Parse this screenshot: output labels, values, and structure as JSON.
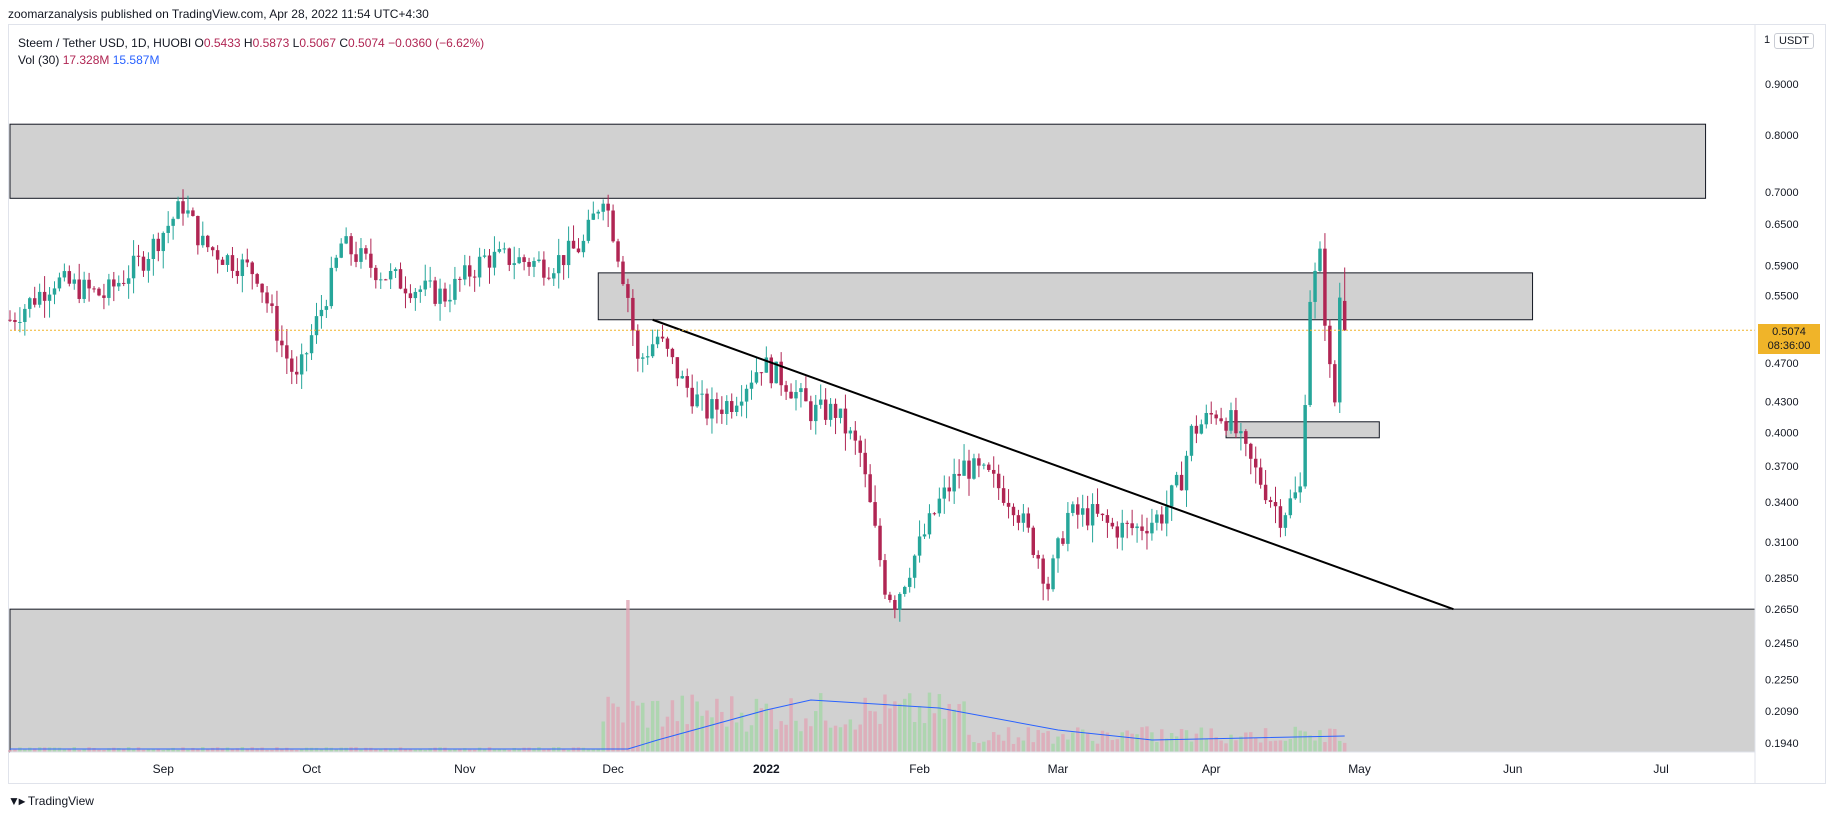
{
  "header": {
    "published": "zoomarzanalysis published on TradingView.com, Apr 28, 2022 11:54 UTC+4:30"
  },
  "legend": {
    "symbol": "Steem / Tether USD, 1D, HUOBI",
    "o_label": "O",
    "o": "0.5433",
    "h_label": "H",
    "h": "0.5873",
    "l_label": "L",
    "l": "0.5067",
    "c_label": "C",
    "c": "0.5074",
    "change": "−0.0360 (−6.62%)",
    "vol_label": "Vol (30)",
    "vol": "17.328M",
    "vol_ma": "15.587M"
  },
  "axis": {
    "unit": "USDT",
    "top_tick": "1",
    "current_price": "0.5074",
    "countdown": "08:36:00",
    "price_ticks": [
      "0.9000",
      "0.8000",
      "0.7000",
      "0.6500",
      "0.5900",
      "0.5500",
      "0.4700",
      "0.4300",
      "0.4000",
      "0.3700",
      "0.3400",
      "0.3100",
      "0.2850",
      "0.2650",
      "0.2450",
      "0.2250",
      "0.2090",
      "0.1940"
    ],
    "time_ticks": [
      "Sep",
      "Oct",
      "Nov",
      "Dec",
      "2022",
      "Feb",
      "Mar",
      "Apr",
      "May",
      "Jun",
      "Jul"
    ]
  },
  "footer": {
    "brand": "TradingView"
  },
  "colors": {
    "up": "#26a69a",
    "down": "#b02553",
    "grey_zone": "#d1d1d1",
    "vol_ma": "#2962ff",
    "price_line": "#f0b429"
  },
  "chart_data": {
    "type": "candlestick",
    "symbol": "Steem / Tether USD",
    "interval": "1D",
    "exchange": "HUOBI",
    "price_scale": "log",
    "x_range": [
      "2021-08-01",
      "2022-07-20"
    ],
    "y_range": [
      0.19,
      1.0
    ],
    "last": {
      "open": 0.5433,
      "high": 0.5873,
      "low": 0.5067,
      "close": 0.5074
    },
    "price_path": [
      [
        "2021-08-01",
        0.52
      ],
      [
        "2021-08-10",
        0.57
      ],
      [
        "2021-08-20",
        0.55
      ],
      [
        "2021-08-28",
        0.6
      ],
      [
        "2021-09-05",
        0.68
      ],
      [
        "2021-09-09",
        0.62
      ],
      [
        "2021-09-14",
        0.6
      ],
      [
        "2021-09-20",
        0.58
      ],
      [
        "2021-09-25",
        0.49
      ],
      [
        "2021-09-28",
        0.45
      ],
      [
        "2021-10-01",
        0.5
      ],
      [
        "2021-10-05",
        0.57
      ],
      [
        "2021-10-07",
        0.62
      ],
      [
        "2021-10-15",
        0.58
      ],
      [
        "2021-10-22",
        0.56
      ],
      [
        "2021-10-28",
        0.55
      ],
      [
        "2021-11-05",
        0.6
      ],
      [
        "2021-11-10",
        0.6
      ],
      [
        "2021-11-18",
        0.59
      ],
      [
        "2021-11-25",
        0.62
      ],
      [
        "2021-11-29",
        0.7
      ],
      [
        "2021-12-01",
        0.64
      ],
      [
        "2021-12-04",
        0.55
      ],
      [
        "2021-12-06",
        0.47
      ],
      [
        "2021-12-10",
        0.5
      ],
      [
        "2021-12-15",
        0.45
      ],
      [
        "2021-12-20",
        0.42
      ],
      [
        "2021-12-25",
        0.43
      ],
      [
        "2021-12-31",
        0.47
      ],
      [
        "2022-01-05",
        0.45
      ],
      [
        "2022-01-10",
        0.42
      ],
      [
        "2022-01-15",
        0.42
      ],
      [
        "2022-01-20",
        0.38
      ],
      [
        "2022-01-25",
        0.28
      ],
      [
        "2022-01-27",
        0.27
      ],
      [
        "2022-01-31",
        0.3
      ],
      [
        "2022-02-05",
        0.34
      ],
      [
        "2022-02-10",
        0.37
      ],
      [
        "2022-02-15",
        0.36
      ],
      [
        "2022-02-20",
        0.34
      ],
      [
        "2022-02-25",
        0.3
      ],
      [
        "2022-02-27",
        0.28
      ],
      [
        "2022-03-03",
        0.33
      ],
      [
        "2022-03-08",
        0.33
      ],
      [
        "2022-03-12",
        0.32
      ],
      [
        "2022-03-17",
        0.32
      ],
      [
        "2022-03-22",
        0.33
      ],
      [
        "2022-03-26",
        0.36
      ],
      [
        "2022-03-28",
        0.4
      ],
      [
        "2022-04-02",
        0.42
      ],
      [
        "2022-04-05",
        0.41
      ],
      [
        "2022-04-08",
        0.38
      ],
      [
        "2022-04-12",
        0.35
      ],
      [
        "2022-04-15",
        0.33
      ],
      [
        "2022-04-19",
        0.35
      ],
      [
        "2022-04-21",
        0.55
      ],
      [
        "2022-04-23",
        0.6
      ],
      [
        "2022-04-25",
        0.46
      ],
      [
        "2022-04-26",
        0.43
      ],
      [
        "2022-04-27",
        0.55
      ],
      [
        "2022-04-28",
        0.5074
      ]
    ],
    "zones": [
      {
        "from": "2021-08-01",
        "to": "2022-07-10",
        "high": 0.82,
        "low": 0.69
      },
      {
        "from": "2021-11-28",
        "to": "2022-06-05",
        "high": 0.58,
        "low": 0.52
      },
      {
        "from": "2022-04-04",
        "to": "2022-05-05",
        "high": 0.41,
        "low": 0.395
      },
      {
        "from": "2021-08-01",
        "to": "2022-07-20",
        "high": 0.265,
        "low": 0.19
      }
    ],
    "trendline": [
      [
        "2021-12-09",
        0.52
      ],
      [
        "2022-05-20",
        0.265
      ]
    ],
    "volume": {
      "last": "17.328M",
      "ma30": "15.587M",
      "peak_date": "2021-12-04"
    }
  }
}
